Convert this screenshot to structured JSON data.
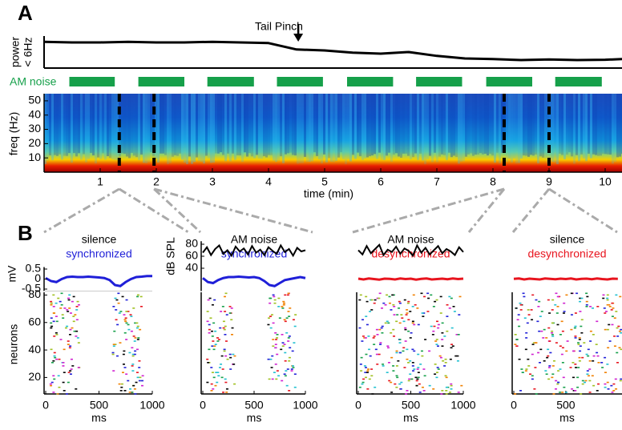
{
  "panel_a": {
    "label": "A",
    "power": {
      "ylabel_lines": [
        "power",
        "< 6Hz"
      ],
      "ylim": [
        0,
        1
      ],
      "x": [
        0,
        0.5,
        1,
        1.5,
        2,
        2.5,
        3,
        3.5,
        4,
        4.5,
        5,
        5.5,
        6,
        6.5,
        7,
        7.5,
        8,
        8.5,
        9,
        9.5,
        10,
        10.3
      ],
      "values": [
        0.82,
        0.8,
        0.8,
        0.82,
        0.8,
        0.8,
        0.82,
        0.8,
        0.78,
        0.58,
        0.55,
        0.48,
        0.45,
        0.5,
        0.38,
        0.3,
        0.28,
        0.25,
        0.27,
        0.25,
        0.26,
        0.28
      ],
      "color": "#000000"
    },
    "annotation": {
      "text": "Tail Pinch",
      "x": 4.53
    },
    "am_noise": {
      "label": "AM noise",
      "color": "#16a04a",
      "intervals": [
        [
          0.45,
          1.26
        ],
        [
          1.68,
          2.5
        ],
        [
          2.91,
          3.74
        ],
        [
          4.15,
          4.97
        ],
        [
          5.4,
          6.22
        ],
        [
          6.63,
          7.45
        ],
        [
          7.88,
          8.7
        ],
        [
          9.11,
          9.94
        ]
      ]
    },
    "spectrogram": {
      "ylabel": "freq (Hz)",
      "ylim": [
        0,
        55
      ],
      "yticks": [
        10,
        20,
        30,
        40,
        50
      ],
      "markers": [
        1.34,
        1.96,
        8.2,
        9.0
      ]
    },
    "time_axis": {
      "label": "time (min)",
      "xlim": [
        0,
        10.3
      ],
      "xticks": [
        1,
        2,
        3,
        4,
        5,
        6,
        7,
        8,
        9,
        10
      ]
    }
  },
  "panel_b": {
    "label": "B",
    "xlabel": "ms",
    "mv_axis": {
      "label": "mV",
      "ylim": [
        -0.6,
        0.6
      ],
      "yticks": [
        0.5,
        0,
        -0.5
      ]
    },
    "db_axis": {
      "label": "dB SPL",
      "ylim": [
        35,
        85
      ],
      "yticks": [
        80,
        60,
        40
      ]
    },
    "neuron_axis": {
      "label": "neurons",
      "ylim": [
        8,
        82
      ],
      "yticks": [
        20,
        40,
        60,
        80
      ]
    },
    "panels": [
      {
        "title": "silence",
        "subtitle": "synchronized",
        "color": "#1f1fd8",
        "xlim": [
          0,
          1000
        ],
        "xticks": [
          0,
          500,
          1000
        ],
        "trace_t": [
          0,
          50,
          100,
          150,
          200,
          250,
          300,
          350,
          400,
          450,
          500,
          550,
          600,
          650,
          700,
          750,
          800,
          850,
          900,
          950,
          1000
        ],
        "trace": [
          0.05,
          -0.1,
          -0.15,
          0.0,
          0.1,
          0.12,
          0.1,
          0.1,
          0.12,
          0.1,
          0.08,
          0.05,
          -0.05,
          -0.3,
          -0.35,
          -0.15,
          0.0,
          0.1,
          0.12,
          0.15,
          0.15
        ]
      },
      {
        "title": "AM noise",
        "subtitle": "synchronized",
        "color": "#1f1fd8",
        "xlim": [
          0,
          1000
        ],
        "xticks": [
          0,
          500,
          1000
        ],
        "trace_t": [
          0,
          50,
          100,
          150,
          200,
          250,
          300,
          350,
          400,
          450,
          500,
          550,
          600,
          650,
          700,
          750,
          800,
          850,
          900,
          950,
          1000
        ],
        "trace": [
          0.05,
          -0.15,
          -0.2,
          -0.05,
          0.05,
          0.1,
          0.1,
          0.12,
          0.1,
          0.08,
          0.1,
          0.05,
          -0.1,
          -0.3,
          -0.35,
          -0.2,
          -0.05,
          0.0,
          0.05,
          0.1,
          0.05
        ],
        "noise_t": [
          0,
          40,
          80,
          120,
          160,
          200,
          240,
          280,
          320,
          360,
          400,
          440,
          480,
          520,
          560,
          600,
          640,
          680,
          720,
          760,
          800,
          840,
          880,
          920,
          960,
          1000
        ],
        "noise": [
          66,
          75,
          62,
          72,
          78,
          64,
          70,
          61,
          76,
          68,
          73,
          63,
          77,
          66,
          71,
          62,
          75,
          69,
          64,
          78,
          67,
          72,
          61,
          74,
          68,
          70
        ]
      },
      {
        "title": "AM noise",
        "subtitle": "desynchronized",
        "color": "#e8141e",
        "xlim": [
          0,
          1000
        ],
        "xticks": [
          0,
          500,
          1000
        ],
        "trace_t": [
          0,
          50,
          100,
          150,
          200,
          250,
          300,
          350,
          400,
          450,
          500,
          550,
          600,
          650,
          700,
          750,
          800,
          850,
          900,
          950,
          1000
        ],
        "trace": [
          0.02,
          -0.02,
          0.03,
          0.0,
          -0.03,
          0.02,
          0.01,
          -0.02,
          0.03,
          0.0,
          0.02,
          -0.03,
          0.01,
          0.03,
          -0.02,
          0.0,
          0.02,
          -0.01,
          0.03,
          0.0,
          0.02
        ],
        "noise_t": [
          0,
          40,
          80,
          120,
          160,
          200,
          240,
          280,
          320,
          360,
          400,
          440,
          480,
          520,
          560,
          600,
          640,
          680,
          720,
          760,
          800,
          840,
          880,
          920,
          960,
          1000
        ],
        "noise": [
          70,
          63,
          77,
          65,
          72,
          79,
          62,
          71,
          67,
          76,
          64,
          73,
          69,
          61,
          78,
          66,
          74,
          63,
          70,
          77,
          65,
          72,
          68,
          62,
          75,
          67
        ]
      },
      {
        "title": "silence",
        "subtitle": "desynchronized",
        "color": "#e8141e",
        "xlim": [
          0,
          1040
        ],
        "xticks": [
          0,
          500
        ],
        "trace_t": [
          0,
          50,
          100,
          150,
          200,
          250,
          300,
          350,
          400,
          450,
          500,
          550,
          600,
          650,
          700,
          750,
          800,
          850,
          900,
          950,
          1000
        ],
        "trace": [
          0.01,
          0.03,
          -0.02,
          0.02,
          0.0,
          -0.02,
          0.03,
          0.01,
          -0.01,
          0.02,
          0.0,
          0.03,
          -0.02,
          0.01,
          0.02,
          -0.01,
          0.03,
          0.0,
          -0.02,
          0.02,
          0.01
        ]
      }
    ]
  }
}
